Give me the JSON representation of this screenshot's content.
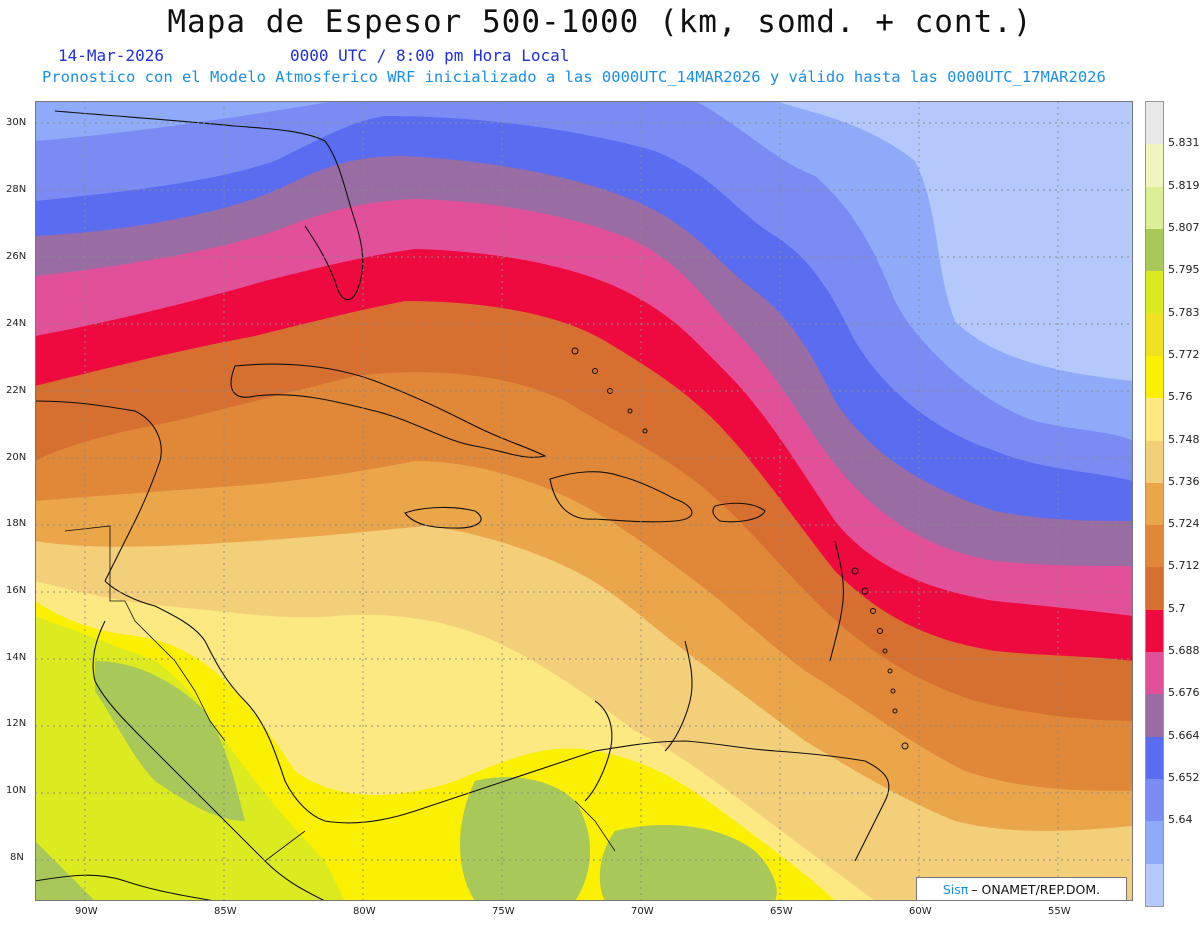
{
  "header": {
    "title": "Mapa de Espesor 500-1000 (km, somd. + cont.)",
    "date": "14-Mar-2026",
    "time": "0000 UTC / 8:00 pm Hora Local",
    "subtitle": "Pronostico con el Modelo Atmosferico WRF inicializado a las 0000UTC_14MAR2026 y válido hasta las  0000UTC_17MAR2026"
  },
  "axes": {
    "lat_labels": [
      "30N",
      "28N",
      "26N",
      "24N",
      "22N",
      "20N",
      "18N",
      "16N",
      "14N",
      "12N",
      "10N",
      "8N"
    ],
    "lon_labels": [
      "90W",
      "85W",
      "80W",
      "75W",
      "70W",
      "65W",
      "60W",
      "55W"
    ]
  },
  "colorbar": {
    "labels": [
      "5.831",
      "5.819",
      "5.807",
      "5.795",
      "5.783",
      "5.772",
      "5.76",
      "5.748",
      "5.736",
      "5.724",
      "5.712",
      "5.7",
      "5.688",
      "5.676",
      "5.664",
      "5.652",
      "5.64"
    ],
    "colors": [
      "#e8e8e8",
      "#f0f5c0",
      "#dcef96",
      "#a8c85a",
      "#dcea20",
      "#f0e220",
      "#faf000",
      "#fce982",
      "#f4cf7a",
      "#eca64a",
      "#e08838",
      "#d66f30",
      "#ee0a3e",
      "#e3509a",
      "#9a6ca4",
      "#5a6cf0",
      "#7a8cf4",
      "#90aafa",
      "#b4c8fc"
    ]
  },
  "credit": {
    "sis": "Sisπ",
    "org": "– ONAMET/REP.DOM."
  }
}
